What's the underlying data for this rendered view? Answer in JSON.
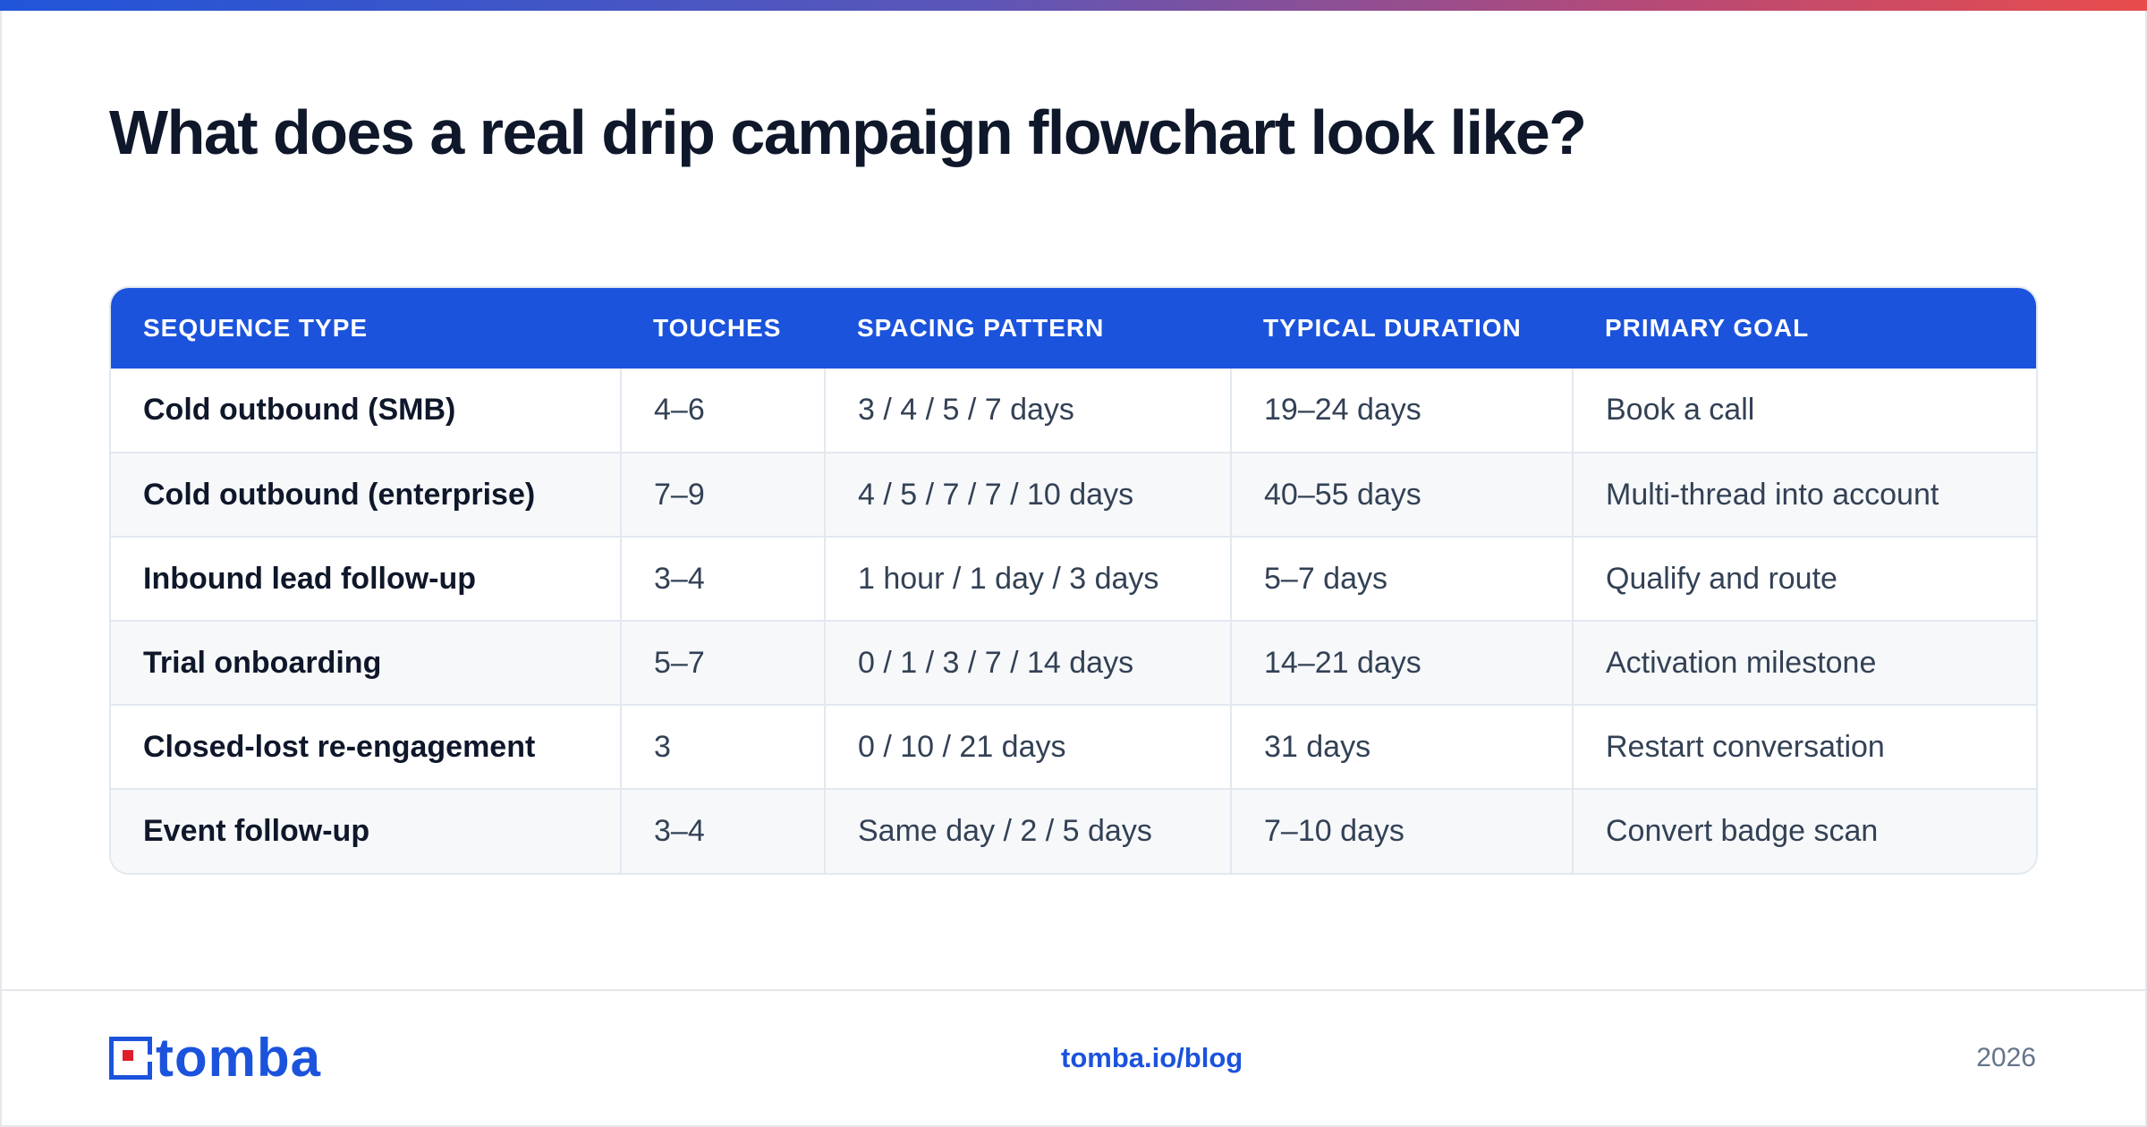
{
  "title": "What does a real drip campaign flowchart look like?",
  "table": {
    "headers": [
      "SEQUENCE TYPE",
      "TOUCHES",
      "SPACING PATTERN",
      "TYPICAL DURATION",
      "PRIMARY GOAL"
    ],
    "rows": [
      [
        "Cold outbound (SMB)",
        "4–6",
        "3 / 4 / 5 / 7 days",
        "19–24 days",
        "Book a call"
      ],
      [
        "Cold outbound (enterprise)",
        "7–9",
        "4 / 5 / 7 / 7 / 10 days",
        "40–55 days",
        "Multi-thread into account"
      ],
      [
        "Inbound lead follow-up",
        "3–4",
        "1 hour / 1 day / 3 days",
        "5–7 days",
        "Qualify and route"
      ],
      [
        "Trial onboarding",
        "5–7",
        "0 / 1 / 3 / 7 / 14 days",
        "14–21 days",
        "Activation milestone"
      ],
      [
        "Closed-lost re-engagement",
        "3",
        "0 / 10 / 21 days",
        "31 days",
        "Restart conversation"
      ],
      [
        "Event follow-up",
        "3–4",
        "Same day / 2 / 5 days",
        "7–10 days",
        "Convert badge scan"
      ]
    ]
  },
  "footer": {
    "logo_text": "tomba",
    "logo_icon": "tomba-logo-icon",
    "link": "tomba.io/blog",
    "year": "2026"
  },
  "colors": {
    "accent": "#1b53dc",
    "gradient_start": "#2055d9",
    "gradient_end": "#e84c4c",
    "logo_red": "#e11d2a"
  }
}
